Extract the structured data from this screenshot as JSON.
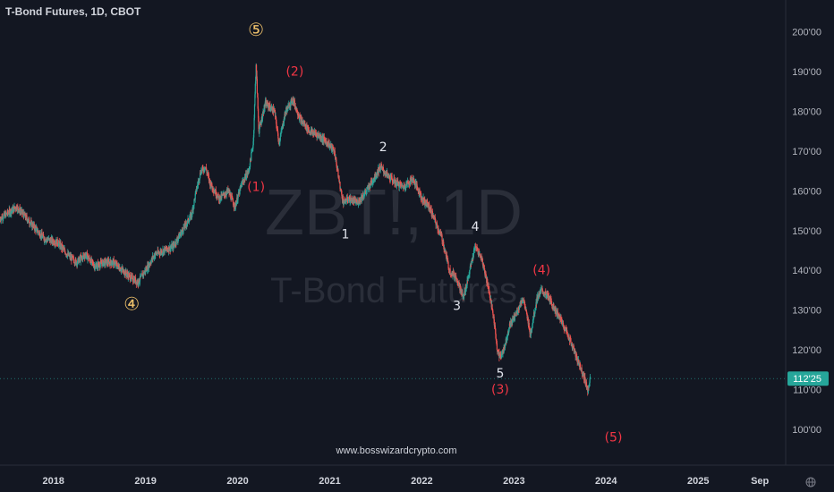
{
  "header": {
    "title": "T-Bond Futures, 1D, CBOT"
  },
  "watermark": {
    "symbol": "ZBT!, 1D",
    "name": "T-Bond Futures"
  },
  "footer": {
    "url": "www.bosswizardcrypto.com"
  },
  "timezone_icon": "globe-icon",
  "colors": {
    "background": "#131722",
    "up": "#26a69a",
    "down": "#ef5350",
    "price_badge": "#26a69a",
    "wave_red": "#f23645",
    "wave_gold": "#f0c26b",
    "wave_white": "#e0e3eb"
  },
  "chart_data": {
    "type": "candlestick",
    "title": "T-Bond Futures, 1D, CBOT",
    "y_ticks": [
      "200'00",
      "190'00",
      "180'00",
      "170'00",
      "160'00",
      "150'00",
      "140'00",
      "130'00",
      "120'00",
      "110'00",
      "100'00"
    ],
    "y_tick_values": [
      200,
      190,
      180,
      170,
      160,
      150,
      140,
      130,
      120,
      110,
      100
    ],
    "ylim": [
      91,
      208
    ],
    "x_ticks": [
      "2018",
      "2019",
      "2020",
      "2021",
      "2022",
      "2023",
      "2024",
      "2025",
      "Sep"
    ],
    "x_tick_values": [
      2018.0,
      2019.0,
      2020.0,
      2021.0,
      2022.0,
      2023.0,
      2024.0,
      2025.0,
      2025.67
    ],
    "xlim": [
      2017.42,
      2025.95
    ],
    "last_price": {
      "label": "112'25",
      "value": 112.78
    },
    "price_path": [
      [
        2017.42,
        153
      ],
      [
        2017.6,
        156
      ],
      [
        2017.75,
        152
      ],
      [
        2017.9,
        148
      ],
      [
        2018.05,
        147
      ],
      [
        2018.15,
        144
      ],
      [
        2018.25,
        142
      ],
      [
        2018.35,
        144
      ],
      [
        2018.45,
        141
      ],
      [
        2018.55,
        142
      ],
      [
        2018.65,
        142
      ],
      [
        2018.75,
        140
      ],
      [
        2018.85,
        138
      ],
      [
        2018.92,
        137
      ],
      [
        2019.0,
        140
      ],
      [
        2019.1,
        144
      ],
      [
        2019.2,
        145
      ],
      [
        2019.3,
        146
      ],
      [
        2019.4,
        150
      ],
      [
        2019.5,
        154
      ],
      [
        2019.55,
        160
      ],
      [
        2019.6,
        165
      ],
      [
        2019.65,
        166
      ],
      [
        2019.7,
        162
      ],
      [
        2019.8,
        158
      ],
      [
        2019.9,
        160
      ],
      [
        2019.97,
        156
      ],
      [
        2020.05,
        162
      ],
      [
        2020.12,
        165
      ],
      [
        2020.17,
        172
      ],
      [
        2020.2,
        192
      ],
      [
        2020.23,
        175
      ],
      [
        2020.3,
        182
      ],
      [
        2020.4,
        180
      ],
      [
        2020.45,
        172
      ],
      [
        2020.52,
        180
      ],
      [
        2020.6,
        183
      ],
      [
        2020.68,
        178
      ],
      [
        2020.78,
        175
      ],
      [
        2020.88,
        174
      ],
      [
        2020.98,
        172
      ],
      [
        2021.05,
        170
      ],
      [
        2021.12,
        160
      ],
      [
        2021.15,
        157
      ],
      [
        2021.2,
        158
      ],
      [
        2021.3,
        157
      ],
      [
        2021.4,
        160
      ],
      [
        2021.5,
        164
      ],
      [
        2021.55,
        166
      ],
      [
        2021.62,
        164
      ],
      [
        2021.72,
        162
      ],
      [
        2021.8,
        161
      ],
      [
        2021.9,
        163
      ],
      [
        2021.97,
        160
      ],
      [
        2022.0,
        158
      ],
      [
        2022.08,
        156
      ],
      [
        2022.15,
        152
      ],
      [
        2022.22,
        148
      ],
      [
        2022.3,
        140
      ],
      [
        2022.38,
        138
      ],
      [
        2022.45,
        133
      ],
      [
        2022.52,
        140
      ],
      [
        2022.58,
        146
      ],
      [
        2022.65,
        143
      ],
      [
        2022.72,
        136
      ],
      [
        2022.78,
        128
      ],
      [
        2022.82,
        120
      ],
      [
        2022.85,
        118
      ],
      [
        2022.9,
        121
      ],
      [
        2022.95,
        126
      ],
      [
        2023.02,
        129
      ],
      [
        2023.1,
        133
      ],
      [
        2023.18,
        124
      ],
      [
        2023.25,
        133
      ],
      [
        2023.3,
        135
      ],
      [
        2023.38,
        133
      ],
      [
        2023.45,
        130
      ],
      [
        2023.52,
        127
      ],
      [
        2023.6,
        123
      ],
      [
        2023.68,
        118
      ],
      [
        2023.75,
        114
      ],
      [
        2023.8,
        110
      ],
      [
        2023.83,
        112.78
      ]
    ],
    "annotations": [
      {
        "label": "⑤",
        "x": 2020.2,
        "y": 199,
        "color": "gold"
      },
      {
        "label": "④",
        "x": 2018.85,
        "y": 130,
        "color": "gold"
      },
      {
        "label": "(2)",
        "x": 2020.62,
        "y": 189,
        "color": "red"
      },
      {
        "label": "(1)",
        "x": 2020.2,
        "y": 160,
        "color": "red"
      },
      {
        "label": "2",
        "x": 2021.58,
        "y": 170,
        "color": "white"
      },
      {
        "label": "1",
        "x": 2021.17,
        "y": 148,
        "color": "white"
      },
      {
        "label": "4",
        "x": 2022.58,
        "y": 150,
        "color": "white"
      },
      {
        "label": "3",
        "x": 2022.38,
        "y": 130,
        "color": "white"
      },
      {
        "label": "(4)",
        "x": 2023.3,
        "y": 139,
        "color": "red"
      },
      {
        "label": "5",
        "x": 2022.85,
        "y": 113,
        "color": "white"
      },
      {
        "label": "(3)",
        "x": 2022.85,
        "y": 109,
        "color": "red"
      },
      {
        "label": "(5)",
        "x": 2024.08,
        "y": 97,
        "color": "red"
      }
    ]
  }
}
